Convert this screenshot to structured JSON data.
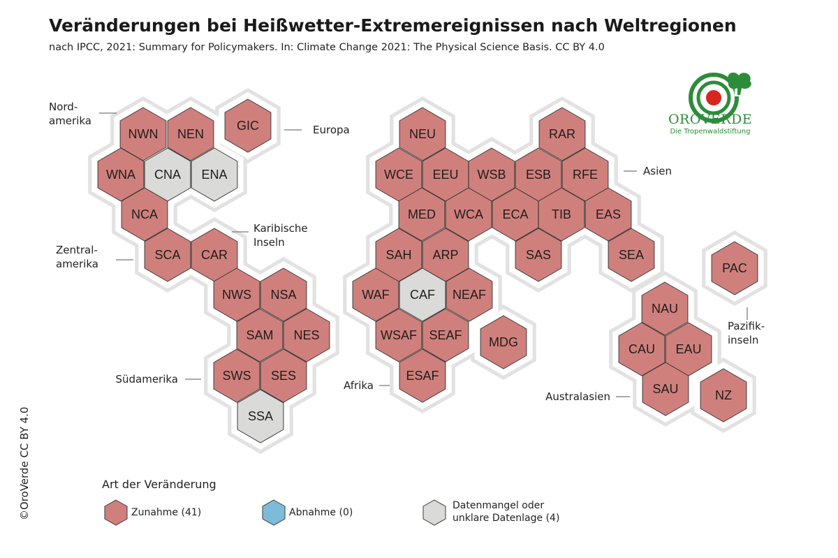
{
  "title": "Veränderungen bei Heißwetter-Extremereignissen nach Weltregionen",
  "subtitle": "nach IPCC, 2021: Summary for Policymakers. In: Climate Change 2021: The Physical Science Basis. CC BY 4.0",
  "logo": {
    "name": "OROVERDE",
    "tagline": "Die Tropenwaldstiftung"
  },
  "copyright": "©OroVerde CC BY 4.0",
  "colors": {
    "increase": "#d0807c",
    "decrease": "#7dbcd8",
    "unclear": "#dadad8",
    "halo": "#e6e6e6",
    "stroke": "#3a3a3a"
  },
  "continents": {
    "north_america": "Nord-\namerika",
    "central_america": "Zentral-\namerika",
    "caribbean": "Karibische\nInseln",
    "south_america": "Südamerika",
    "europe": "Europa",
    "africa": "Afrika",
    "asia": "Asien",
    "australasia": "Australasien",
    "pacific": "Pazifik-\ninseln"
  },
  "regions": [
    {
      "code": "NWN",
      "status": "increase"
    },
    {
      "code": "NEN",
      "status": "increase"
    },
    {
      "code": "GIC",
      "status": "increase"
    },
    {
      "code": "WNA",
      "status": "increase"
    },
    {
      "code": "CNA",
      "status": "unclear"
    },
    {
      "code": "ENA",
      "status": "unclear"
    },
    {
      "code": "NCA",
      "status": "increase"
    },
    {
      "code": "SCA",
      "status": "increase"
    },
    {
      "code": "CAR",
      "status": "increase"
    },
    {
      "code": "NWS",
      "status": "increase"
    },
    {
      "code": "NSA",
      "status": "increase"
    },
    {
      "code": "SAM",
      "status": "increase"
    },
    {
      "code": "NES",
      "status": "increase"
    },
    {
      "code": "SWS",
      "status": "increase"
    },
    {
      "code": "SES",
      "status": "increase"
    },
    {
      "code": "SSA",
      "status": "unclear"
    },
    {
      "code": "NEU",
      "status": "increase"
    },
    {
      "code": "WCE",
      "status": "increase"
    },
    {
      "code": "EEU",
      "status": "increase"
    },
    {
      "code": "MED",
      "status": "increase"
    },
    {
      "code": "WSB",
      "status": "increase"
    },
    {
      "code": "ESB",
      "status": "increase"
    },
    {
      "code": "RAR",
      "status": "increase"
    },
    {
      "code": "RFE",
      "status": "increase"
    },
    {
      "code": "WCA",
      "status": "increase"
    },
    {
      "code": "ECA",
      "status": "increase"
    },
    {
      "code": "TIB",
      "status": "increase"
    },
    {
      "code": "EAS",
      "status": "increase"
    },
    {
      "code": "SAS",
      "status": "increase"
    },
    {
      "code": "SEA",
      "status": "increase"
    },
    {
      "code": "SAH",
      "status": "increase"
    },
    {
      "code": "ARP",
      "status": "increase"
    },
    {
      "code": "WAF",
      "status": "increase"
    },
    {
      "code": "CAF",
      "status": "unclear"
    },
    {
      "code": "NEAF",
      "status": "increase"
    },
    {
      "code": "WSAF",
      "status": "increase"
    },
    {
      "code": "SEAF",
      "status": "increase"
    },
    {
      "code": "ESAF",
      "status": "increase"
    },
    {
      "code": "MDG",
      "status": "increase"
    },
    {
      "code": "PAC",
      "status": "increase"
    },
    {
      "code": "NAU",
      "status": "increase"
    },
    {
      "code": "CAU",
      "status": "increase"
    },
    {
      "code": "EAU",
      "status": "increase"
    },
    {
      "code": "SAU",
      "status": "increase"
    },
    {
      "code": "NZ",
      "status": "increase"
    }
  ],
  "legend": {
    "title": "Art der Veränderung",
    "increase": "Zunahme (41)",
    "decrease": "Abnahme (0)",
    "unclear_line1": "Datenmangel oder",
    "unclear_line2": "unklare Datenlage (4)"
  }
}
